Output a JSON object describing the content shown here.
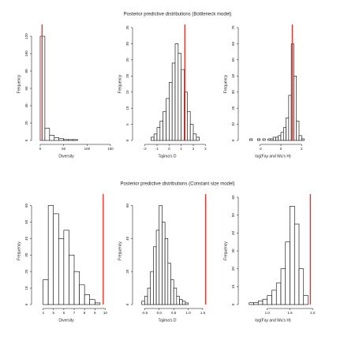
{
  "chart_data": [
    {
      "type": "histogram",
      "title": "Posterior predictive distributions (Bottleneck model)",
      "xlabel": "Diversity",
      "ylabel": "Frequency",
      "bins": [
        0,
        10,
        20,
        30,
        40,
        50,
        60,
        70,
        80,
        90,
        100,
        110,
        120,
        130,
        140,
        150
      ],
      "values": [
        120,
        14,
        6,
        3,
        2,
        1,
        1,
        1,
        0,
        0,
        0,
        0,
        0,
        0,
        0
      ],
      "observed": 4,
      "color": "#ffffff",
      "line_color": "#e8352a",
      "xlim": [
        -5,
        150
      ],
      "ylim": [
        0,
        130
      ],
      "xticks": [
        0,
        50,
        100,
        150
      ],
      "yticks": [
        0,
        20,
        40,
        60,
        80,
        100,
        120
      ]
    },
    {
      "type": "histogram",
      "xlabel": "Tajima's D",
      "ylabel": "Frequency",
      "bins": [
        -1.5,
        -1.25,
        -1,
        -0.75,
        -0.5,
        -0.25,
        0,
        0.25,
        0.5,
        0.75,
        1,
        1.25,
        1.5,
        1.75,
        2,
        2.25,
        2.5
      ],
      "values": [
        1,
        2,
        4,
        6,
        9,
        13,
        18,
        24,
        30,
        27,
        22,
        15,
        9,
        5,
        2,
        1
      ],
      "observed": 1.3,
      "color": "#ffffff",
      "line_color": "#e8352a",
      "xlim": [
        -2.5,
        3.5
      ],
      "ylim": [
        0,
        35
      ],
      "xticks": [
        -2,
        -1,
        0,
        1,
        2,
        3
      ],
      "yticks": [
        0,
        5,
        10,
        15,
        20,
        25,
        30,
        35
      ]
    },
    {
      "type": "histogram",
      "xlabel": "log(Fay and Wu's H)",
      "ylabel": "Frequency",
      "bins": [
        -3,
        -2.75,
        -2.5,
        -2.25,
        -2,
        -1.75,
        -1.5,
        -1.25,
        -1,
        -0.75,
        -0.5,
        -0.25,
        0,
        0.25,
        0.5,
        0.75,
        1,
        1.25,
        1.5,
        1.75,
        2,
        2.25,
        2.5,
        2.75,
        3
      ],
      "values": [
        1,
        0,
        0,
        1,
        0,
        1,
        0,
        1,
        1,
        2,
        2,
        3,
        5,
        8,
        14,
        28,
        60,
        40,
        12,
        3,
        1,
        0,
        0,
        0
      ],
      "observed": 1.1,
      "color": "#ffffff",
      "line_color": "#e8352a",
      "xlim": [
        -3.5,
        3.5
      ],
      "ylim": [
        0,
        70
      ],
      "xticks": [
        -2,
        0,
        2
      ],
      "yticks": [
        0,
        10,
        20,
        30,
        40,
        50,
        60,
        70
      ]
    },
    {
      "type": "histogram",
      "title": "Posterior predictive distributions (Constant size model)",
      "xlabel": "Diversity",
      "ylabel": "Frequency",
      "bins": [
        4,
        4.5,
        5,
        5.5,
        6,
        6.5,
        7,
        7.5,
        8,
        8.5,
        9,
        9.5
      ],
      "values": [
        15,
        60,
        55,
        40,
        45,
        30,
        20,
        12,
        6,
        3,
        1
      ],
      "observed": 9.8,
      "color": "#ffffff",
      "line_color": "#e8352a",
      "xlim": [
        3.5,
        10.5
      ],
      "ylim": [
        0,
        65
      ],
      "xticks": [
        4,
        5,
        6,
        7,
        8,
        9,
        10
      ],
      "yticks": [
        0,
        10,
        20,
        30,
        40,
        50,
        60
      ]
    },
    {
      "type": "histogram",
      "xlabel": "Tajima's D",
      "ylabel": "Frequency",
      "bins": [
        -0.6,
        -0.5,
        -0.4,
        -0.3,
        -0.2,
        -0.1,
        0,
        0.1,
        0.2,
        0.3,
        0.4,
        0.5,
        0.6,
        0.7,
        0.8,
        0.9,
        1
      ],
      "values": [
        2,
        5,
        10,
        20,
        35,
        45,
        60,
        50,
        40,
        25,
        15,
        10,
        5,
        3,
        2,
        1
      ],
      "observed": 1.6,
      "color": "#ffffff",
      "line_color": "#e8352a",
      "xlim": [
        -0.7,
        1.8
      ],
      "ylim": [
        0,
        65
      ],
      "xticks": [
        {
          "value": -0.5,
          "label": "-0.5"
        },
        {
          "value": 0,
          "label": "0.0"
        },
        {
          "value": 0.5,
          "label": "0.5"
        },
        {
          "value": 1,
          "label": "1.0"
        },
        {
          "value": 1.5,
          "label": "1.5"
        }
      ],
      "yticks": [
        0,
        20,
        40,
        60
      ]
    },
    {
      "type": "histogram",
      "xlabel": "log(Fay and Wu's H)",
      "ylabel": "Frequency",
      "bins": [
        0.6,
        0.7,
        0.8,
        0.9,
        1,
        1.1,
        1.2,
        1.3,
        1.4,
        1.5,
        1.6,
        1.7,
        1.8,
        1.9
      ],
      "values": [
        1,
        1,
        2,
        3,
        5,
        8,
        12,
        20,
        35,
        55,
        45,
        20,
        5
      ],
      "observed": 1.95,
      "color": "#ffffff",
      "line_color": "#e8352a",
      "xlim": [
        0.5,
        2.1
      ],
      "ylim": [
        0,
        60
      ],
      "xticks": [
        {
          "value": 1,
          "label": "1.0"
        },
        {
          "value": 1.5,
          "label": "1.5"
        },
        {
          "value": 2,
          "label": "2.0"
        }
      ],
      "yticks": [
        0,
        10,
        20,
        30,
        40,
        50,
        60
      ]
    }
  ]
}
